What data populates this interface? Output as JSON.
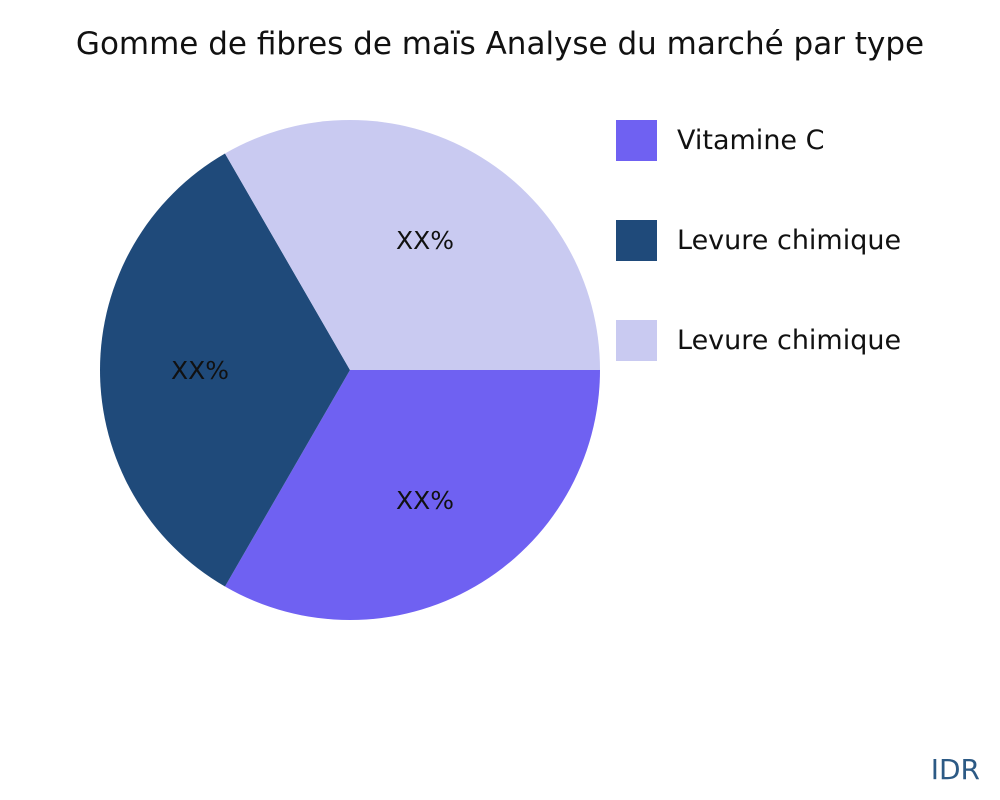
{
  "chart_data": {
    "type": "pie",
    "title": "Gomme de fibres de maïs Analyse du marché par type",
    "categories": [
      "Vitamine C",
      "Levure chimique",
      "Levure chimique"
    ],
    "values": [
      33.33,
      33.33,
      33.33
    ],
    "data_labels": [
      "XX%",
      "XX%",
      "XX%"
    ],
    "colors": [
      "#6f61f2",
      "#1f4a7a",
      "#c9caf1"
    ],
    "legend_position": "right"
  },
  "brand": "IDR"
}
